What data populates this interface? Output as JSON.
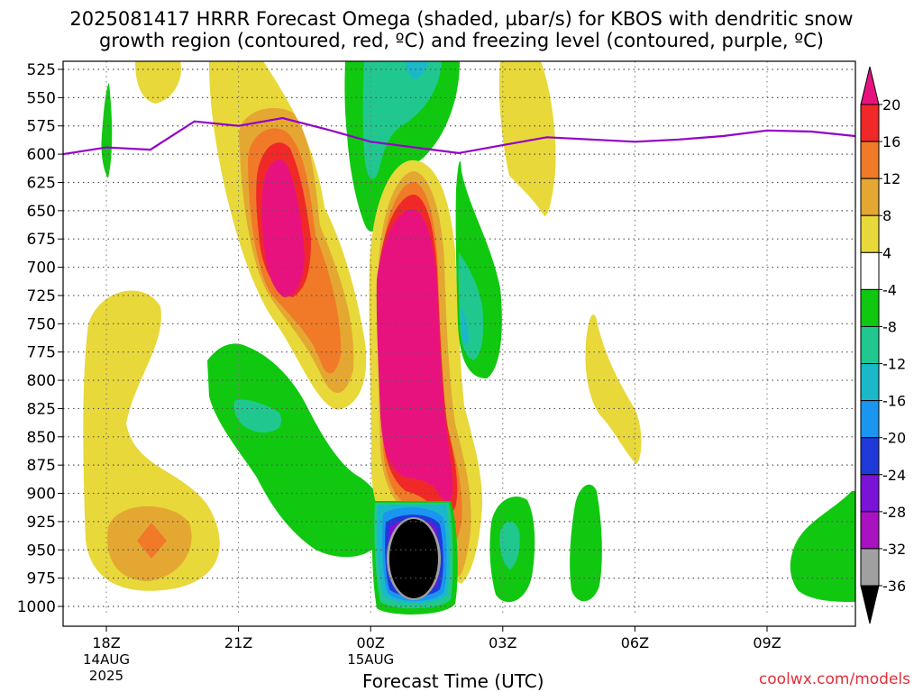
{
  "title": {
    "line1": "2025081417 HRRR Forecast Omega (shaded, µbar/s) for KBOS with dendritic snow",
    "line2": "growth region (contoured, red, ºC) and freezing level (contoured, purple, ºC)"
  },
  "credit": "coolwx.com/models",
  "chart_data": {
    "type": "heatmap",
    "title": "2025081417 HRRR Forecast Omega (shaded, µbar/s) for KBOS with dendritic snow growth region (contoured, red, ºC) and freezing level (contoured, purple, ºC)",
    "xlabel": "Forecast Time (UTC)",
    "ylabel": "",
    "x_hours_range": [
      17,
      35
    ],
    "y_range": [
      1000,
      525
    ],
    "y_scale": "pressure (inverted)",
    "grid": true,
    "y_ticks": [
      525,
      550,
      575,
      600,
      625,
      650,
      675,
      700,
      725,
      750,
      775,
      800,
      825,
      850,
      875,
      900,
      925,
      950,
      975,
      1000
    ],
    "x_ticks": [
      {
        "label": "18Z",
        "sub": "14AUG",
        "sub2": "2025",
        "hour": 18
      },
      {
        "label": "21Z",
        "sub": "",
        "sub2": "",
        "hour": 21
      },
      {
        "label": "00Z",
        "sub": "15AUG",
        "sub2": "",
        "hour": 24
      },
      {
        "label": "03Z",
        "sub": "",
        "sub2": "",
        "hour": 27
      },
      {
        "label": "06Z",
        "sub": "",
        "sub2": "",
        "hour": 30
      },
      {
        "label": "09Z",
        "sub": "",
        "sub2": "",
        "hour": 33
      }
    ],
    "colorbar": {
      "labels": [
        "20",
        "16",
        "12",
        "8",
        "4",
        "-4",
        "-8",
        "-12",
        "-16",
        "-20",
        "-24",
        "-28",
        "-32",
        "-36"
      ],
      "levels": [
        {
          "color": "#e8127f",
          "range": "> 20"
        },
        {
          "color": "#f02828",
          "range": "16 to 20"
        },
        {
          "color": "#f07a28",
          "range": "12 to 16"
        },
        {
          "color": "#e4a832",
          "range": "8 to 12"
        },
        {
          "color": "#e8d83a",
          "range": "4 to 8"
        },
        {
          "color": "#ffffff",
          "range": "-4 to 4"
        },
        {
          "color": "#10c810",
          "range": "-8 to -4"
        },
        {
          "color": "#20c890",
          "range": "-12 to -8"
        },
        {
          "color": "#1ab8c8",
          "range": "-16 to -12"
        },
        {
          "color": "#1a96f0",
          "range": "-20 to -16"
        },
        {
          "color": "#1f3ad8",
          "range": "-24 to -20"
        },
        {
          "color": "#7a12d8",
          "range": "-28 to -24"
        },
        {
          "color": "#a812c0",
          "range": "-32 to -28"
        },
        {
          "color": "#a0a0a0",
          "range": "-36 to -32"
        },
        {
          "color": "#000000",
          "range": "< -36"
        }
      ]
    },
    "freezing_level": {
      "color": "#9400c8",
      "hours": [
        17.0,
        18.0,
        19.0,
        20.0,
        21.0,
        22.0,
        23.0,
        24.0,
        25.0,
        26.0,
        27.0,
        28.0,
        29.0,
        30.0,
        31.0,
        32.0,
        33.0,
        34.0,
        35.0
      ],
      "pressure": [
        600,
        594,
        596,
        571,
        575,
        568,
        578,
        589,
        594,
        599,
        592,
        585,
        587,
        589,
        587,
        584,
        579,
        580,
        584
      ]
    },
    "features": [
      {
        "kind": "ascent",
        "name": "low-level rise near 18Z-19Z",
        "hour": 19.0,
        "p_top": 695,
        "p_bottom": 980,
        "max_value": 16
      },
      {
        "kind": "ascent",
        "name": "mid-level rise near 22Z",
        "hour": 22.0,
        "p_top": 530,
        "p_bottom": 810,
        "max_value": 24
      },
      {
        "kind": "ascent",
        "name": "strong rise near 01Z",
        "hour": 25.0,
        "p_top": 585,
        "p_bottom": 990,
        "max_value": 24
      },
      {
        "kind": "sinking",
        "name": "strong sinking near 01Z",
        "hour": 25.0,
        "p_top": 880,
        "p_bottom": 1000,
        "min_value": -40
      },
      {
        "kind": "sinking",
        "name": "upper sinking near 00Z",
        "hour": 24.5,
        "p_top": 525,
        "p_bottom": 610,
        "min_value": -12
      },
      {
        "kind": "sinking",
        "name": "sinking near 21Z",
        "hour": 21.5,
        "p_top": 730,
        "p_bottom": 960,
        "min_value": -12
      }
    ]
  }
}
